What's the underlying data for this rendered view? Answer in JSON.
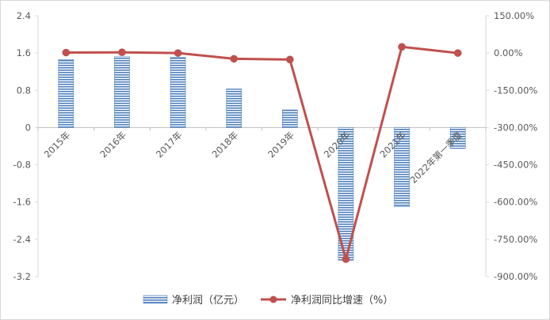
{
  "chart_data": {
    "type": "bar",
    "categories": [
      "2015年",
      "2016年",
      "2017年",
      "2018年",
      "2019年",
      "2020年",
      "2021年",
      "2022年第一季度"
    ],
    "series": [
      {
        "name": "净利润（亿元）",
        "kind": "bar",
        "axis": "left",
        "values": [
          1.46,
          1.52,
          1.51,
          0.83,
          0.38,
          -2.85,
          -1.7,
          -0.45
        ],
        "color": "#4f81bd",
        "pattern": "horizontal-stripes"
      },
      {
        "name": "净利润同比增速（%）",
        "kind": "line",
        "axis": "right",
        "values": [
          2.0,
          3.0,
          0.0,
          -23.0,
          -26.0,
          -830.0,
          25.0,
          0.0
        ],
        "color": "#c0504d",
        "marker": "circle"
      }
    ],
    "y_left": {
      "ylim": [
        -3.2,
        2.4
      ],
      "ticks": [
        2.4,
        1.6,
        0.8,
        0,
        -0.8,
        -1.6,
        -2.4,
        -3.2
      ],
      "tick_labels": [
        "2.4",
        "1.6",
        "0.8",
        "0",
        "-0.8",
        "-1.6",
        "-2.4",
        "-3.2"
      ]
    },
    "y_right": {
      "ylim": [
        -900,
        150
      ],
      "ticks": [
        150,
        0,
        -150,
        -300,
        -450,
        -600,
        -750,
        -900
      ],
      "tick_labels": [
        "150.00%",
        "0.00%",
        "-150.00%",
        "-300.00%",
        "-450.00%",
        "-600.00%",
        "-750.00%",
        "-900.00%"
      ]
    },
    "grid": false,
    "legend_position": "bottom",
    "category_label_rotation": "diagonal"
  }
}
